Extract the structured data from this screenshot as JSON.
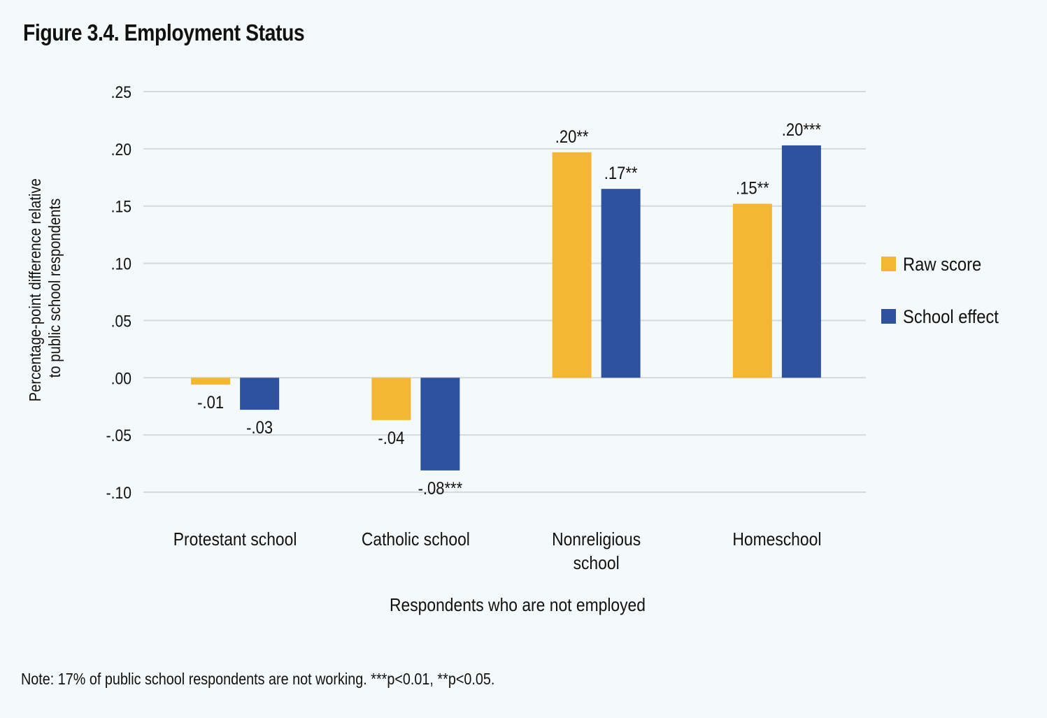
{
  "figure": {
    "title": "Figure 3.4. Employment Status",
    "note": "Note: 17% of public school respondents are not working. ***p<0.01, **p<0.05."
  },
  "chart_data": {
    "type": "bar",
    "title": "Figure 3.4. Employment Status",
    "xlabel": "Respondents who are not employed",
    "ylabel": [
      "Percentage-point difference relative",
      "to public school respondents"
    ],
    "ylim": [
      -0.1,
      0.25
    ],
    "yticks": [
      0.25,
      0.2,
      0.15,
      0.1,
      0.05,
      0.0,
      -0.05,
      -0.1
    ],
    "ytick_labels": [
      ".25",
      ".20",
      ".15",
      ".10",
      ".05",
      ".00",
      "-.05",
      "-.10"
    ],
    "grid": true,
    "legend_position": "right",
    "categories": [
      [
        "Protestant school"
      ],
      [
        "Catholic school"
      ],
      [
        "Nonreligious",
        "school"
      ],
      [
        "Homeschool"
      ]
    ],
    "series": [
      {
        "name": "Raw score",
        "color": "#f4b733",
        "values": [
          -0.006,
          -0.037,
          0.197,
          0.152
        ],
        "labels": [
          "-.01",
          "-.04",
          ".20**",
          ".15**"
        ]
      },
      {
        "name": "School effect",
        "color": "#2e52a0",
        "values": [
          -0.028,
          -0.081,
          0.165,
          0.203
        ],
        "labels": [
          "-.03",
          "-.08***",
          ".17**",
          ".20***"
        ]
      }
    ]
  }
}
